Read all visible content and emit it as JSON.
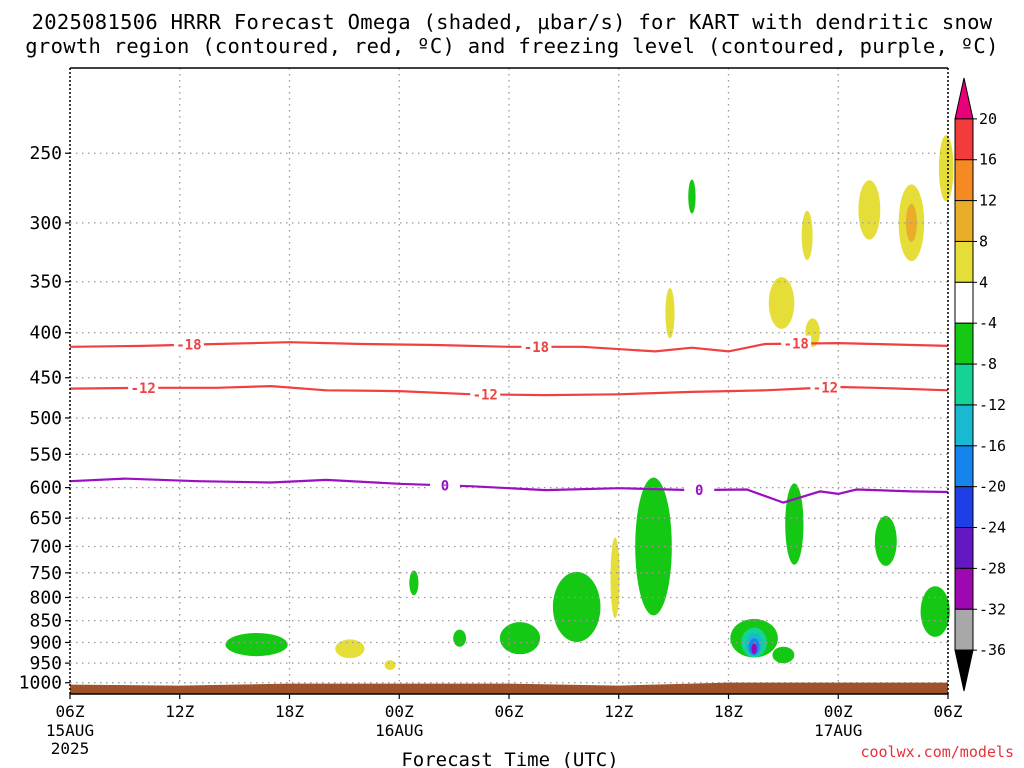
{
  "title_line1": "2025081506 HRRR Forecast Omega (shaded, μbar/s) for KART with dendritic snow",
  "title_line2": "growth region (contoured, red, ºC) and freezing level (contoured, purple, ºC)",
  "credit": "coolwx.com/models",
  "chart_data": {
    "type": "heatmap",
    "title": "2025081506 HRRR Forecast Omega (shaded, μbar/s) for KART with dendritic snow growth region (contoured, red, ºC) and freezing level (contoured, purple, ºC)",
    "xlabel": "Forecast Time (UTC)",
    "ylabel": "",
    "x_ticks": [
      "06Z",
      "12Z",
      "18Z",
      "00Z",
      "06Z",
      "12Z",
      "18Z",
      "00Z",
      "06Z"
    ],
    "x_date_labels": [
      {
        "tick": "06Z",
        "lines": [
          "15AUG",
          "2025"
        ]
      },
      {
        "tick": "00Z",
        "lines": [
          "16AUG"
        ]
      },
      {
        "tick": "00Z",
        "lines": [
          "17AUG"
        ]
      }
    ],
    "x_range_hours": [
      0,
      48
    ],
    "y_ticks": [
      250,
      300,
      350,
      400,
      450,
      500,
      550,
      600,
      650,
      700,
      750,
      800,
      850,
      900,
      950,
      1000
    ],
    "y_range": [
      200,
      1030
    ],
    "y_scale": "log-pressure, reversed",
    "grid": true,
    "legend": "colorbar right",
    "colorbar": {
      "labels": [
        "20",
        "16",
        "12",
        "8",
        "4",
        "-4",
        "-8",
        "-12",
        "-16",
        "-20",
        "-24",
        "-28",
        "-32",
        "-36"
      ],
      "colors": [
        "#e8007a",
        "#f23b3b",
        "#f58a22",
        "#e9ad2a",
        "#e6de38",
        "#ffffff",
        "#14c814",
        "#15d295",
        "#19b9d2",
        "#1585ed",
        "#1e3ee6",
        "#6418c3",
        "#9e08b3",
        "#a8a8a8",
        "#000000"
      ]
    },
    "contours": [
      {
        "label": "-18",
        "color": "#f04040",
        "points": [
          [
            0,
            415
          ],
          [
            4,
            414
          ],
          [
            8,
            412
          ],
          [
            12,
            410
          ],
          [
            16,
            412
          ],
          [
            20,
            413
          ],
          [
            24,
            415
          ],
          [
            28,
            415
          ],
          [
            32,
            420
          ],
          [
            34,
            416
          ],
          [
            36,
            420
          ],
          [
            38,
            412
          ],
          [
            42,
            411
          ],
          [
            44,
            412
          ],
          [
            48,
            414
          ]
        ]
      },
      {
        "label": "-12",
        "color": "#f04040",
        "points": [
          [
            0,
            463
          ],
          [
            4,
            462
          ],
          [
            8,
            462
          ],
          [
            11,
            460
          ],
          [
            14,
            465
          ],
          [
            18,
            466
          ],
          [
            22,
            470
          ],
          [
            26,
            471
          ],
          [
            30,
            470
          ],
          [
            34,
            467
          ],
          [
            38,
            465
          ],
          [
            40,
            463
          ],
          [
            42,
            461
          ],
          [
            44,
            462
          ],
          [
            48,
            465
          ]
        ]
      },
      {
        "label": "0",
        "color": "#9a10c0",
        "points": [
          [
            0,
            590
          ],
          [
            3,
            586
          ],
          [
            7,
            590
          ],
          [
            11,
            592
          ],
          [
            14,
            588
          ],
          [
            18,
            594
          ],
          [
            22,
            598
          ],
          [
            26,
            604
          ],
          [
            30,
            601
          ],
          [
            34,
            604
          ],
          [
            37,
            603
          ],
          [
            39,
            624
          ],
          [
            41,
            606
          ],
          [
            42,
            610
          ],
          [
            43,
            603
          ],
          [
            46,
            606
          ],
          [
            48,
            607
          ]
        ]
      }
    ],
    "omega_shading": [
      {
        "value": -4,
        "center": [
          10.2,
          905
        ],
        "hours": 1.7,
        "hpa": 55
      },
      {
        "value": 4,
        "center": [
          15.3,
          915
        ],
        "hours": 0.8,
        "hpa": 45
      },
      {
        "value": 4,
        "center": [
          17.5,
          955
        ],
        "hours": 0.3,
        "hpa": 25
      },
      {
        "value": -4,
        "center": [
          18.8,
          770
        ],
        "hours": 0.25,
        "hpa": 50
      },
      {
        "value": -4,
        "center": [
          21.3,
          890
        ],
        "hours": 0.35,
        "hpa": 40
      },
      {
        "value": -4,
        "center": [
          24.6,
          890
        ],
        "hours": 1.1,
        "hpa": 75
      },
      {
        "value": -4,
        "center": [
          27.7,
          820
        ],
        "hours": 1.3,
        "hpa": 150
      },
      {
        "value": 4,
        "center": [
          29.8,
          760
        ],
        "hours": 0.25,
        "hpa": 160
      },
      {
        "value": -4,
        "center": [
          31.9,
          700
        ],
        "hours": 1.0,
        "hpa": 250
      },
      {
        "value": -4,
        "center": [
          37.4,
          890
        ],
        "hours": 1.3,
        "hpa": 90
      },
      {
        "value": -8,
        "center": [
          37.4,
          900
        ],
        "hours": 0.7,
        "hpa": 70
      },
      {
        "value": -12,
        "center": [
          37.4,
          905
        ],
        "hours": 0.45,
        "hpa": 55
      },
      {
        "value": -16,
        "center": [
          37.4,
          910
        ],
        "hours": 0.3,
        "hpa": 40
      },
      {
        "value": -28,
        "center": [
          37.4,
          915
        ],
        "hours": 0.15,
        "hpa": 25
      },
      {
        "value": -4,
        "center": [
          39.0,
          930
        ],
        "hours": 0.6,
        "hpa": 40
      },
      {
        "value": -4,
        "center": [
          39.6,
          660
        ],
        "hours": 0.5,
        "hpa": 140
      },
      {
        "value": -4,
        "center": [
          44.6,
          690
        ],
        "hours": 0.6,
        "hpa": 90
      },
      {
        "value": -4,
        "center": [
          47.3,
          830
        ],
        "hours": 0.8,
        "hpa": 110
      },
      {
        "value": -4,
        "center": [
          34.0,
          280
        ],
        "hours": 0.2,
        "hpa": 25
      },
      {
        "value": 4,
        "center": [
          32.8,
          380
        ],
        "hours": 0.25,
        "hpa": 50
      },
      {
        "value": 4,
        "center": [
          38.9,
          370
        ],
        "hours": 0.7,
        "hpa": 50
      },
      {
        "value": 4,
        "center": [
          40.6,
          400
        ],
        "hours": 0.4,
        "hpa": 30
      },
      {
        "value": 4,
        "center": [
          40.3,
          310
        ],
        "hours": 0.3,
        "hpa": 40
      },
      {
        "value": 4,
        "center": [
          43.7,
          290
        ],
        "hours": 0.6,
        "hpa": 45
      },
      {
        "value": 4,
        "center": [
          46.0,
          300
        ],
        "hours": 0.7,
        "hpa": 60
      },
      {
        "value": 8,
        "center": [
          46.0,
          300
        ],
        "hours": 0.3,
        "hpa": 30
      },
      {
        "value": 4,
        "center": [
          47.9,
          260
        ],
        "hours": 0.4,
        "hpa": 45
      }
    ],
    "surface": {
      "color": "#a0522d",
      "pressure_top": 1005
    }
  }
}
